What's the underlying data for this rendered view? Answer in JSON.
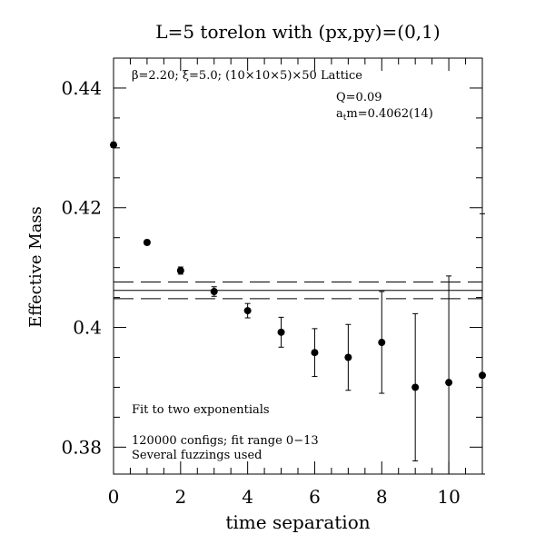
{
  "chart_data": {
    "type": "scatter",
    "title": "L=5 torelon with (px,py)=(0,1)",
    "xlabel": "time separation",
    "ylabel": "Effective Mass",
    "xlim": [
      0,
      11
    ],
    "ylim": [
      0.3755,
      0.445
    ],
    "x_ticks": [
      0,
      2,
      4,
      6,
      8,
      10
    ],
    "x_tick_labels": [
      "0",
      "2",
      "4",
      "6",
      "8",
      "10"
    ],
    "y_ticks": [
      0.38,
      0.4,
      0.42,
      0.44
    ],
    "y_tick_labels": [
      "0.38",
      "0.4",
      "0.42",
      "0.44"
    ],
    "grid": false,
    "annotations": {
      "lattice": "β=2.20; ξ=5.0; (10×10×5)×50 Lattice",
      "q": "Q=0.09",
      "mass_prefix": "a",
      "mass_sub": "t",
      "mass_value": "m=0.4062(14)",
      "fit": "Fit to two exponentials",
      "configs": "120000 configs; fit range 0−13",
      "fuzz": "Several fuzzings used"
    },
    "fit_band": {
      "central": 0.4062,
      "error": 0.0014
    },
    "series": [
      {
        "x": [
          0,
          1,
          2,
          3,
          4,
          5,
          6,
          7,
          8,
          9,
          10,
          11
        ],
        "y": [
          0.4305,
          0.4142,
          0.4095,
          0.406,
          0.4028,
          0.3992,
          0.3958,
          0.395,
          0.3975,
          0.39,
          0.3908,
          0.392
        ],
        "error": [
          0.0004,
          0.0004,
          0.0006,
          0.0008,
          0.0012,
          0.0025,
          0.004,
          0.0055,
          0.0085,
          0.0123,
          0.0178,
          0.027
        ]
      }
    ]
  }
}
